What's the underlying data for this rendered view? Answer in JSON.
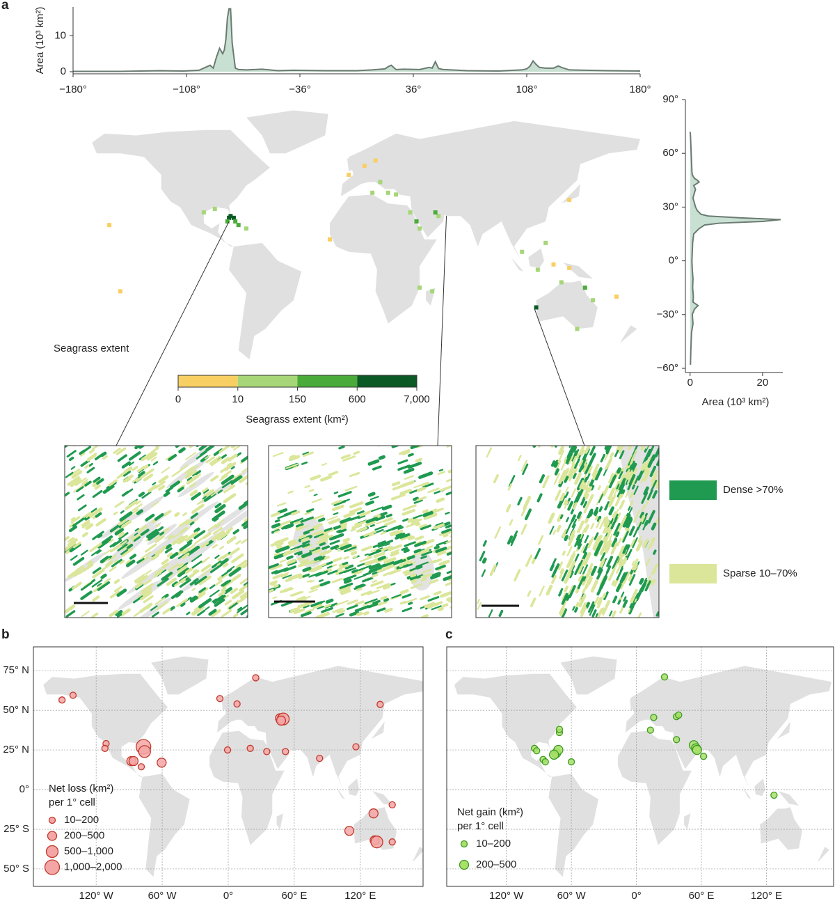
{
  "chart_data": [
    {
      "type": "area",
      "panel": "a",
      "ylabel": "Area (10³ km²)",
      "color": "#c8e0d2",
      "line_color": "#6b7b72",
      "x": [
        -180,
        -150,
        -125,
        -110,
        -100,
        -96,
        -93,
        -91,
        -89,
        -87,
        -85,
        -84,
        -83,
        -82,
        -81,
        -80,
        -79,
        -77,
        -75,
        -70,
        -60,
        -50,
        -40,
        -20,
        0,
        10,
        18,
        20,
        22,
        25,
        30,
        40,
        46,
        48,
        50,
        52,
        55,
        60,
        70,
        90,
        100,
        105,
        108,
        110,
        112,
        114,
        116,
        120,
        125,
        128,
        130,
        135,
        145,
        160,
        180
      ],
      "values": [
        0.1,
        0.1,
        0.3,
        0.2,
        0.4,
        1.2,
        1.8,
        1.0,
        4,
        6.5,
        5,
        6,
        9,
        15,
        17.5,
        17.5,
        8,
        1.0,
        0.6,
        0.5,
        0.7,
        0.3,
        0.4,
        0.3,
        0.3,
        0.5,
        0.8,
        1.4,
        1.8,
        0.6,
        0.7,
        0.6,
        1.2,
        1.0,
        2.8,
        0.9,
        0.6,
        0.5,
        0.3,
        0.2,
        0.4,
        0.5,
        0.8,
        1.5,
        3,
        2,
        1.2,
        1.0,
        1.0,
        1.6,
        1.2,
        0.5,
        0.4,
        0.3,
        0.2
      ],
      "xlim": [
        -180,
        180
      ],
      "ylim": [
        0,
        18
      ],
      "xticks": [
        {
          "value": -180,
          "label": "−180°"
        },
        {
          "value": -108,
          "label": "−108°"
        },
        {
          "value": -36,
          "label": "−36°"
        },
        {
          "value": 36,
          "label": "36°"
        },
        {
          "value": 108,
          "label": "108°"
        },
        {
          "value": 180,
          "label": "180°"
        }
      ],
      "yticks": [
        0,
        10
      ]
    },
    {
      "type": "area-vertical",
      "xlabel": "Area (10³ km²)",
      "color": "#c8e0d2",
      "line_color": "#6b7b72",
      "y": [
        -58,
        -50,
        -40,
        -35,
        -30,
        -27,
        -25,
        -23,
        -20,
        -15,
        -10,
        -5,
        0,
        5,
        10,
        15,
        18,
        20,
        21,
        22,
        23,
        24,
        25,
        26,
        28,
        30,
        35,
        38,
        40,
        42,
        44,
        45,
        46,
        48,
        50,
        55,
        60,
        65,
        70,
        72
      ],
      "values": [
        0.1,
        0.2,
        0.4,
        0.8,
        0.6,
        1.2,
        2.2,
        0.8,
        0.9,
        0.7,
        0.8,
        0.6,
        0.5,
        0.6,
        0.7,
        1.0,
        2.5,
        4,
        8,
        20,
        25,
        14,
        5,
        3,
        2,
        1.5,
        0.8,
        1.2,
        1.5,
        1.0,
        2.5,
        2.0,
        1.2,
        0.6,
        0.5,
        0.4,
        0.3,
        0.2,
        0.1,
        0
      ],
      "xlim": [
        -1.3,
        25.6
      ],
      "ylim": [
        -60,
        90
      ],
      "xticks": [
        0,
        20
      ],
      "yticks": [
        {
          "value": 90,
          "label": "90°"
        },
        {
          "value": 60,
          "label": "60°"
        },
        {
          "value": 30,
          "label": "30°"
        },
        {
          "value": 0,
          "label": "0°"
        },
        {
          "value": -30,
          "label": "−30°"
        },
        {
          "value": -60,
          "label": "−60°"
        }
      ]
    },
    {
      "type": "map",
      "annotation": "Seagrass extent",
      "xlim": [
        -180,
        180
      ],
      "ylim": [
        -60,
        90
      ],
      "cells": {
        "lon": [
          -80,
          -78,
          -81,
          -77,
          -82,
          -90,
          -97,
          -75,
          -70,
          38,
          40,
          34,
          52,
          50,
          10,
          20,
          25,
          15,
          -5,
          5,
          12,
          114,
          145,
          150,
          130,
          140,
          120,
          115,
          125,
          135,
          105,
          40,
          48,
          -17,
          135,
          -157,
          -150,
          165
        ],
        "lat": [
          25,
          24,
          24,
          22,
          22,
          29,
          27,
          20,
          18,
          22,
          18,
          27,
          25,
          27,
          38,
          38,
          37,
          44,
          48,
          53,
          56,
          -26,
          -15,
          -22,
          -12,
          -38,
          10,
          -5,
          -2,
          -4,
          5,
          -15,
          -17,
          12,
          34,
          20,
          -17,
          -20
        ],
        "values": [
          7000,
          3000,
          900,
          400,
          200,
          100,
          80,
          300,
          120,
          200,
          80,
          120,
          150,
          200,
          30,
          15,
          20,
          12,
          8,
          5,
          6,
          700,
          200,
          100,
          40,
          20,
          60,
          30,
          8,
          5,
          12,
          40,
          20,
          6,
          10,
          5,
          6,
          8
        ]
      },
      "colorbar": {
        "label": "Seagrass extent (km²)",
        "bins": [
          0,
          10,
          150,
          600,
          {
            "value": 7000,
            "label": "7,000"
          }
        ],
        "colors": [
          "#f8cf63",
          "#a6d677",
          "#4aab3a",
          "#0b5a26"
        ]
      },
      "inset_legend": [
        {
          "name": "Dense >70%",
          "color": "#1f9a50"
        },
        {
          "name": "Sparse 10–70%",
          "color": "#dbe69a"
        }
      ]
    },
    {
      "type": "bubble-map",
      "panel": "b",
      "legend_title": [
        "Net loss (km²)",
        "per 1° cell"
      ],
      "size_labels": [
        "10–200",
        "200–500",
        "500–1,000",
        "1,000–2,000"
      ],
      "color": "#f4a6a6",
      "edge": "#c0392b",
      "x": [
        -151,
        -141,
        -7.6,
        25,
        8,
        138,
        -0.6,
        20,
        35,
        47,
        50,
        48,
        52,
        116,
        83,
        -111,
        -112,
        -77,
        -76,
        -88,
        -86,
        -79,
        -60.5,
        110,
        132,
        133,
        135,
        149,
        149
      ],
      "y": [
        56.5,
        59.5,
        57.4,
        70.5,
        54,
        53.7,
        25,
        26,
        24,
        45,
        44.5,
        43.5,
        24,
        27,
        19.7,
        29,
        26,
        27,
        24,
        18,
        18,
        14.4,
        17,
        -26,
        -15,
        -32,
        -33,
        -9.6,
        -33
      ],
      "size": [
        0,
        0,
        0,
        0,
        0,
        0,
        0,
        0,
        0,
        1,
        2,
        1,
        0,
        0,
        0,
        0,
        0,
        3,
        2,
        1,
        1,
        0,
        1,
        1,
        1,
        1,
        2,
        0,
        0
      ],
      "xlim": [
        -177,
        177
      ],
      "ylim": [
        -61,
        90
      ],
      "ytick_labels": true,
      "xticks": [
        {
          "value": -120,
          "label": "120° W"
        },
        {
          "value": -60,
          "label": "60° W"
        },
        {
          "value": 0,
          "label": "0°"
        },
        {
          "value": 60,
          "label": "60° E"
        },
        {
          "value": 120,
          "label": "120° E"
        }
      ],
      "yticks": [
        {
          "value": 75,
          "label": "75° N"
        },
        {
          "value": 50,
          "label": "50° N"
        },
        {
          "value": 25,
          "label": "25° N"
        },
        {
          "value": 0,
          "label": "0°"
        },
        {
          "value": -25,
          "label": "25° S"
        },
        {
          "value": -50,
          "label": "50° S"
        }
      ]
    },
    {
      "type": "bubble-map",
      "panel": "c",
      "legend_title": [
        "Net gain (km²)",
        "per 1° cell"
      ],
      "size_labels": [
        "10–200",
        "200–500"
      ],
      "color": "#a8e06a",
      "edge": "#3c9a1f",
      "x": [
        26,
        16,
        13,
        37,
        39,
        37,
        53,
        55,
        56,
        62,
        -94,
        -92,
        -74,
        -72,
        -76,
        -71,
        -71,
        -86,
        -84,
        -60,
        127
      ],
      "y": [
        71,
        45.5,
        37.5,
        46,
        47,
        31.5,
        28,
        26,
        25,
        21,
        26,
        24.5,
        23,
        25,
        22,
        36,
        38,
        19,
        17.5,
        17.5,
        -3.5
      ],
      "size": [
        0,
        0,
        0,
        0,
        0,
        0,
        1,
        1,
        1,
        0,
        0,
        0,
        1,
        1,
        1,
        0,
        0,
        0,
        0,
        0,
        0
      ],
      "xlim": [
        -175,
        182
      ],
      "ylim": [
        -61,
        90
      ],
      "ytick_labels": false,
      "xticks": [
        {
          "value": -120,
          "label": "120° W"
        },
        {
          "value": -60,
          "label": "60° W"
        },
        {
          "value": 0,
          "label": "0°"
        },
        {
          "value": 60,
          "label": "60° E"
        },
        {
          "value": 120,
          "label": "120° E"
        }
      ],
      "yticks": [
        75,
        50,
        25,
        0,
        -25,
        -50
      ]
    }
  ]
}
